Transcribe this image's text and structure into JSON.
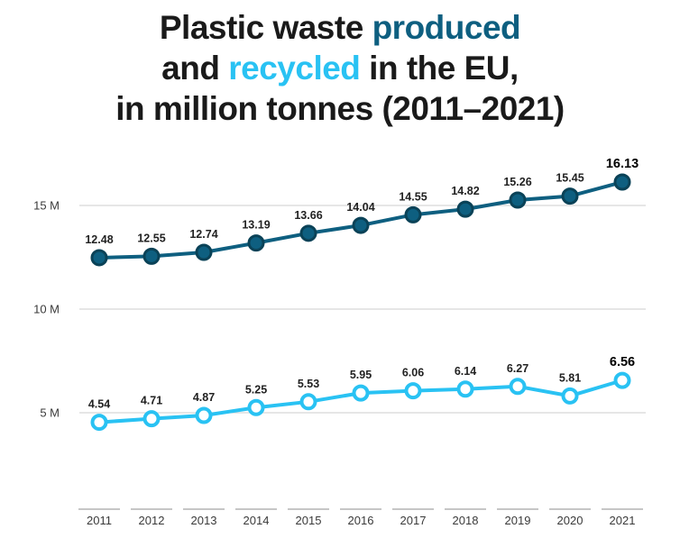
{
  "title": {
    "l1_a": "Plastic waste ",
    "l1_b": "produced",
    "l2_a": "and ",
    "l2_b": "recycled",
    "l2_c": " in the EU,",
    "l3": "in million tonnes (2011–2021)"
  },
  "colors": {
    "produced": "#0e5f80",
    "produced_marker_ring": "#0a4257",
    "recycled": "#29c2f3",
    "recycled_marker_fill": "#ffffff",
    "title_text": "#1a1a1a",
    "gridline": "#d8d8d8",
    "axis_tick": "#b3b3b3",
    "axis_label": "#3a3a3a",
    "value_label": "#222222",
    "value_label_last": "#000000"
  },
  "chart_data": {
    "type": "line",
    "title": "Plastic waste produced and recycled in the EU, in million tonnes (2011–2021)",
    "categories": [
      "2011",
      "2012",
      "2013",
      "2014",
      "2015",
      "2016",
      "2017",
      "2018",
      "2019",
      "2020",
      "2021"
    ],
    "series": [
      {
        "name": "produced",
        "color": "#0e5f80",
        "values": [
          12.48,
          12.55,
          12.74,
          13.19,
          13.66,
          14.04,
          14.55,
          14.82,
          15.26,
          15.45,
          16.13
        ]
      },
      {
        "name": "recycled",
        "color": "#29c2f3",
        "values": [
          4.54,
          4.71,
          4.87,
          5.25,
          5.53,
          5.95,
          6.06,
          6.14,
          6.27,
          5.81,
          6.56
        ]
      }
    ],
    "ylabels": [
      "15 M",
      "10 M",
      "5 M"
    ],
    "ytick_values": [
      15,
      10,
      5
    ],
    "ylim": [
      3.5,
      17
    ],
    "grid": true,
    "legend": "none",
    "xlabel": "",
    "ylabel": "",
    "unit": "million tonnes",
    "data_labels": true
  }
}
